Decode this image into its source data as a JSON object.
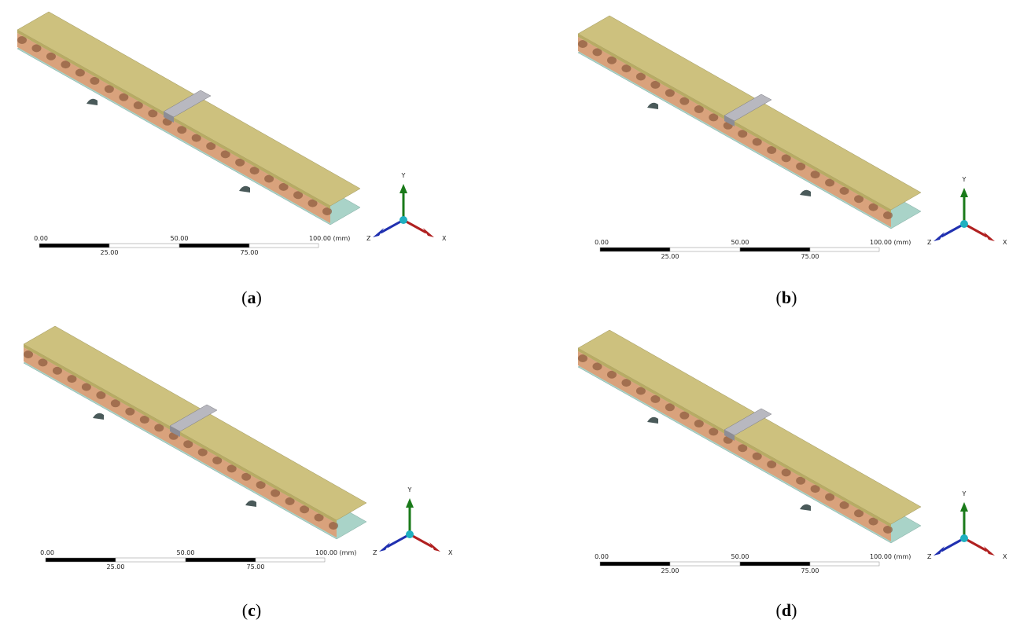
{
  "panels": [
    {
      "caption": {
        "open": "(",
        "label": "a",
        "close": ")"
      },
      "scale": {
        "top": [
          "0.00",
          "50.00",
          "100.00 (mm)"
        ],
        "bottom": [
          "25.00",
          "75.00"
        ]
      },
      "axes": {
        "y": "Y",
        "x": "X",
        "z": "Z"
      }
    },
    {
      "caption": {
        "open": "(",
        "label": "b",
        "close": ")"
      },
      "scale": {
        "top": [
          "0.00",
          "50.00",
          "100.00 (mm)"
        ],
        "bottom": [
          "25.00",
          "75.00"
        ]
      },
      "axes": {
        "y": "Y",
        "x": "X",
        "z": "Z"
      }
    },
    {
      "caption": {
        "open": "(",
        "label": "c",
        "close": ")"
      },
      "scale": {
        "top": [
          "0.00",
          "50.00",
          "100.00 (mm)"
        ],
        "bottom": [
          "25.00",
          "75.00"
        ]
      },
      "axes": {
        "y": "Y",
        "x": "X",
        "z": "Z"
      }
    },
    {
      "caption": {
        "open": "(",
        "label": "d",
        "close": ")"
      },
      "scale": {
        "top": [
          "0.00",
          "50.00",
          "100.00 (mm)"
        ],
        "bottom": [
          "25.00",
          "75.00"
        ]
      },
      "axes": {
        "y": "Y",
        "x": "X",
        "z": "Z"
      }
    }
  ]
}
